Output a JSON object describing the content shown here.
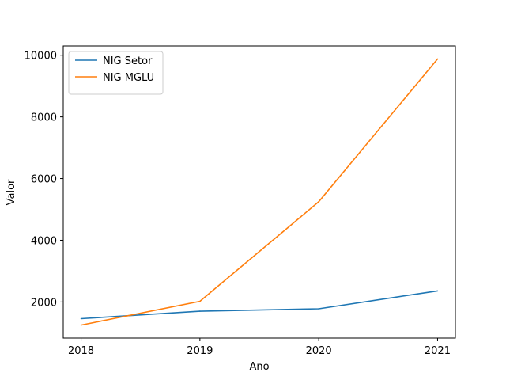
{
  "chart_data": {
    "type": "line",
    "title": "",
    "xlabel": "Ano",
    "ylabel": "Valor",
    "x": [
      2018,
      2019,
      2020,
      2021
    ],
    "x_tick_labels": [
      "2018",
      "2019",
      "2020",
      "2021"
    ],
    "y_ticks": [
      2000,
      4000,
      6000,
      8000,
      10000
    ],
    "y_tick_labels": [
      "2000",
      "4000",
      "6000",
      "8000",
      "10000"
    ],
    "xlim": [
      2017.85,
      2021.15
    ],
    "ylim": [
      830,
      10300
    ],
    "grid": false,
    "legend_position": "top-left",
    "series": [
      {
        "name": "NIG Setor",
        "color": "#1f77b4",
        "values": [
          1460,
          1700,
          1780,
          2360
        ]
      },
      {
        "name": "NIG MGLU",
        "color": "#ff7f0e",
        "values": [
          1250,
          2020,
          5250,
          9880
        ]
      }
    ]
  }
}
